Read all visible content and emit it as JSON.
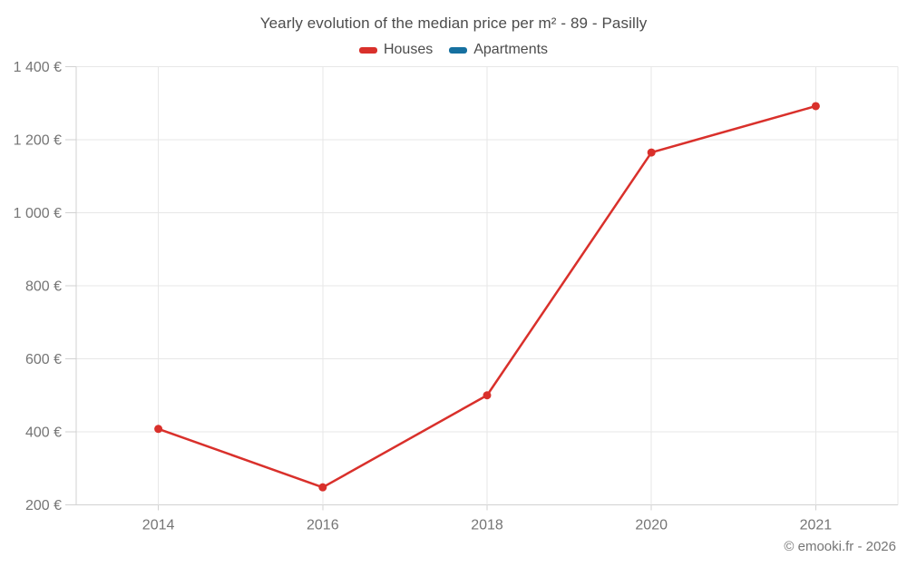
{
  "chart": {
    "title": "Yearly evolution of the median price per m² - 89 - Pasilly",
    "footer": "© emooki.fr - 2026"
  },
  "colors": {
    "houses": "#d9302b",
    "apartments": "#1670a0",
    "grid": "#e7e7e7",
    "axis": "#d2d2d2",
    "title_text": "#4c4c4c",
    "tick_text": "#757575"
  },
  "chart_data": {
    "type": "line",
    "title": "Yearly evolution of the median price per m² - 89 - Pasilly",
    "categories": [
      "2014",
      "2016",
      "2018",
      "2020",
      "2021"
    ],
    "series": [
      {
        "name": "Houses",
        "color_key": "houses",
        "values": [
          408,
          248,
          500,
          1165,
          1292
        ]
      },
      {
        "name": "Apartments",
        "color_key": "apartments",
        "values": []
      }
    ],
    "yticks": [
      200,
      400,
      600,
      800,
      1000,
      1200,
      1400
    ],
    "ytick_labels": [
      "200 €",
      "400 €",
      "600 €",
      "800 €",
      "1 000 €",
      "1 200 €",
      "1 400 €"
    ],
    "ylim": [
      200,
      1400
    ],
    "grid": true,
    "legend_position": "top",
    "annotation": "© emooki.fr - 2026"
  }
}
